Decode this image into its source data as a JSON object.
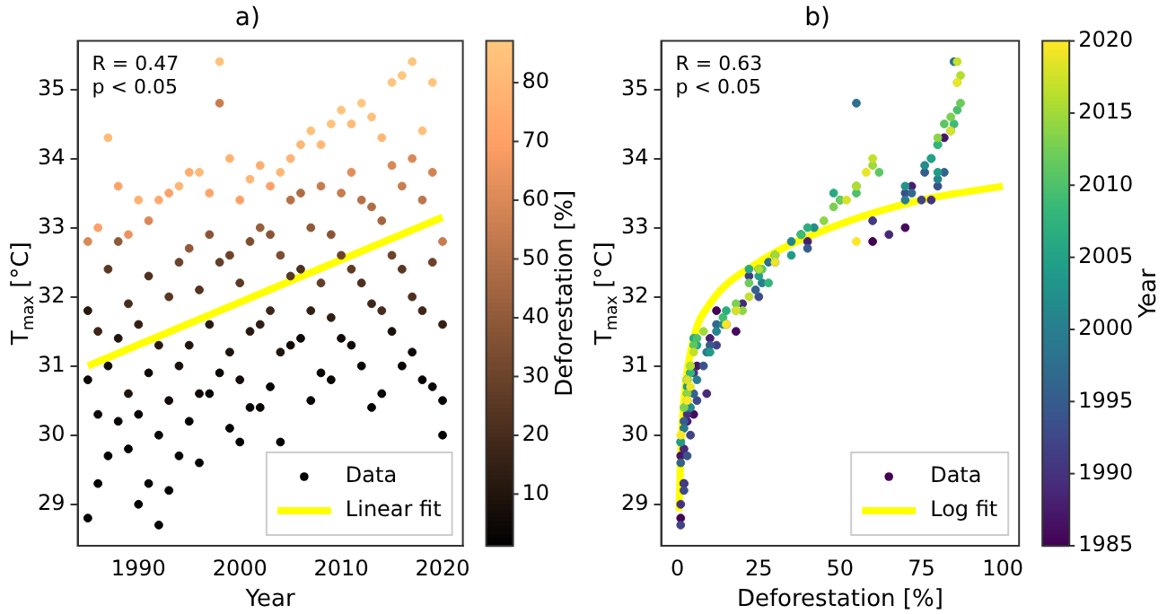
{
  "chart_data": [
    {
      "type": "scatter",
      "title": "a)",
      "xlabel": "Year",
      "ylabel": "T$_{max}$ [°C]",
      "clabel": "Deforestation [%]",
      "xlim": [
        1984,
        2022
      ],
      "xticks": [
        1990,
        2000,
        2010,
        2020
      ],
      "ylim": [
        28.4,
        35.7
      ],
      "yticks": [
        29,
        30,
        31,
        32,
        33,
        34,
        35
      ],
      "clim": [
        1.2,
        87.1
      ],
      "cticks": [
        10,
        20,
        30,
        40,
        50,
        60,
        70,
        80
      ],
      "grid": false,
      "legend": "bottom right",
      "annotations": [
        "R = 0.47",
        "p < 0.05"
      ],
      "series": [
        {
          "name": "Data",
          "type": "scatter",
          "marker": "circle",
          "x": [
            1985,
            1985,
            1985,
            1985,
            1986,
            1986,
            1986,
            1986,
            1987,
            1987,
            1987,
            1987,
            1988,
            1988,
            1988,
            1988,
            1989,
            1989,
            1989,
            1989,
            1990,
            1990,
            1990,
            1990,
            1991,
            1991,
            1991,
            1991,
            1992,
            1992,
            1992,
            1992,
            1993,
            1993,
            1993,
            1993,
            1994,
            1994,
            1994,
            1994,
            1995,
            1995,
            1995,
            1995,
            1996,
            1996,
            1996,
            1996,
            1997,
            1997,
            1997,
            1997,
            1998,
            1998,
            1998,
            1998,
            1999,
            1999,
            1999,
            1999,
            2000,
            2000,
            2000,
            2000,
            2001,
            2001,
            2001,
            2001,
            2002,
            2002,
            2002,
            2002,
            2003,
            2003,
            2003,
            2003,
            2004,
            2004,
            2004,
            2004,
            2005,
            2005,
            2005,
            2005,
            2006,
            2006,
            2006,
            2006,
            2007,
            2007,
            2007,
            2007,
            2008,
            2008,
            2008,
            2008,
            2009,
            2009,
            2009,
            2009,
            2010,
            2010,
            2010,
            2010,
            2011,
            2011,
            2011,
            2011,
            2012,
            2012,
            2012,
            2012,
            2013,
            2013,
            2013,
            2013,
            2014,
            2014,
            2014,
            2014,
            2015,
            2015,
            2015,
            2015,
            2016,
            2016,
            2016,
            2016,
            2017,
            2017,
            2017,
            2017,
            2018,
            2018,
            2018,
            2018,
            2019,
            2019,
            2019,
            2019,
            2020,
            2020,
            2020,
            2020
          ],
          "values": [
            28.8,
            30.8,
            31.8,
            32.8,
            29.3,
            30.3,
            31.5,
            33.0,
            29.7,
            31.0,
            32.4,
            34.3,
            30.2,
            31.4,
            32.8,
            33.6,
            29.8,
            30.6,
            31.9,
            32.9,
            29.0,
            30.3,
            31.6,
            33.4,
            29.3,
            30.9,
            32.3,
            33.1,
            28.7,
            30.0,
            31.3,
            33.4,
            29.2,
            30.5,
            32.0,
            33.5,
            29.7,
            31.0,
            32.5,
            33.6,
            30.2,
            31.3,
            32.7,
            33.8,
            29.6,
            30.6,
            32.1,
            33.8,
            30.6,
            31.6,
            32.9,
            33.5,
            30.9,
            32.5,
            34.8,
            35.4,
            30.1,
            31.2,
            32.6,
            34.0,
            29.9,
            30.8,
            32.2,
            33.4,
            30.4,
            31.5,
            32.8,
            33.7,
            30.4,
            31.6,
            33.0,
            33.9,
            30.7,
            31.8,
            32.9,
            33.6,
            29.9,
            31.2,
            32.6,
            33.8,
            31.3,
            32.3,
            33.4,
            34.0,
            31.4,
            32.4,
            33.5,
            34.2,
            30.5,
            31.8,
            33.0,
            34.4,
            30.9,
            32.2,
            33.6,
            34.2,
            30.8,
            31.7,
            32.9,
            34.5,
            31.4,
            32.6,
            33.5,
            34.7,
            31.3,
            32.4,
            33.8,
            34.5,
            31.0,
            32.2,
            33.4,
            34.8,
            30.4,
            31.9,
            33.3,
            34.6,
            30.6,
            31.8,
            33.1,
            34.3,
            31.5,
            32.6,
            33.9,
            35.1,
            31.0,
            32.4,
            33.6,
            35.2,
            31.2,
            32.0,
            34.0,
            35.4,
            30.8,
            31.8,
            33.4,
            34.4,
            30.7,
            32.5,
            33.8,
            35.1,
            30.0,
            30.5,
            31.6,
            32.8
          ],
          "colors": [
            "#000000",
            "#070403",
            "#281910",
            "#da8857",
            "#030201",
            "#0e0906",
            "#3e2719",
            "#ffa066",
            "#000000",
            "#120b07",
            "#583723",
            "#ffbb77",
            "#070403",
            "#21140d",
            "#905a39",
            "#ffa469",
            "#030201",
            "#1d120c",
            "#462c1c",
            "#ed945e",
            "#000000",
            "#070403",
            "#332014",
            "#ffb271",
            "#030201",
            "#0e0906",
            "#4d301f",
            "#da8857",
            "#000000",
            "#0a0604",
            "#281910",
            "#ffab6d",
            "#030201",
            "#120b07",
            "#583723",
            "#ffa066",
            "#070403",
            "#19100a",
            "#6b432b",
            "#ffb774",
            "#030201",
            "#21140d",
            "#905a39",
            "#ffad6e",
            "#000000",
            "#0e0906",
            "#553522",
            "#ffbb77",
            "#070403",
            "#281910",
            "#895536",
            "#ffa469",
            "#0a0604",
            "#633e28",
            "#c87d4f",
            "#ffc27c",
            "#030201",
            "#1d120c",
            "#6b432b",
            "#ffb271",
            "#000000",
            "#120b07",
            "#5c3a25",
            "#ffa066",
            "#070403",
            "#281910",
            "#7d4e32",
            "#ffb774",
            "#0a0604",
            "#2f1e13",
            "#975f3c",
            "#ffad6e",
            "#070403",
            "#3e2719",
            "#895536",
            "#ffa066",
            "#000000",
            "#21140d",
            "#7d4e32",
            "#ffb774",
            "#120b07",
            "#583723",
            "#b57148",
            "#ffb271",
            "#0e0906",
            "#4d301f",
            "#ae6d45",
            "#ffb774",
            "#070403",
            "#332014",
            "#905a39",
            "#ffc07a",
            "#0a0604",
            "#633e28",
            "#c87d4f",
            "#ffb774",
            "#070403",
            "#2f1e13",
            "#895536",
            "#ffc27c",
            "#120b07",
            "#6b432b",
            "#c87d4f",
            "#ffc57d",
            "#0e0906",
            "#5c3a25",
            "#e28d5a",
            "#ffbb77",
            "#0a0604",
            "#4d301f",
            "#b57148",
            "#ffc77f",
            "#030201",
            "#3e2719",
            "#ae6d45",
            "#ffc07a",
            "#070403",
            "#462c1c",
            "#a36641",
            "#ffb774",
            "#19100a",
            "#6b432b",
            "#da8857",
            "#ffc57d",
            "#0a0604",
            "#583723",
            "#c87d4f",
            "#ffc77f",
            "#0e0906",
            "#4d301f",
            "#da8857",
            "#ffc57d",
            "#070403",
            "#3e2719",
            "#bc764b",
            "#ffc07a",
            "#0a0604",
            "#6b432b",
            "#d38454",
            "#ffc57d",
            "#000000",
            "#070403",
            "#332014",
            "#c87d4f"
          ],
          "cvalues": [
            1,
            3,
            12,
            60,
            2,
            5,
            18,
            70,
            1,
            6,
            25,
            82,
            3,
            10,
            40,
            72,
            2,
            9,
            20,
            65,
            1,
            3,
            15,
            78,
            2,
            5,
            22,
            60,
            1,
            4,
            12,
            75,
            2,
            6,
            25,
            70,
            3,
            8,
            30,
            80,
            2,
            10,
            40,
            76,
            1,
            5,
            24,
            82,
            3,
            12,
            38,
            72,
            4,
            28,
            55,
            85,
            2,
            9,
            30,
            78,
            1,
            6,
            26,
            70,
            3,
            12,
            35,
            80,
            4,
            14,
            42,
            76,
            3,
            18,
            38,
            70,
            1,
            10,
            35,
            80,
            6,
            25,
            50,
            78,
            5,
            22,
            48,
            80,
            3,
            15,
            40,
            84,
            4,
            28,
            55,
            80,
            3,
            14,
            38,
            85,
            6,
            30,
            55,
            86,
            5,
            26,
            62,
            82,
            4,
            22,
            50,
            87,
            2,
            18,
            48,
            84,
            3,
            20,
            45,
            80,
            8,
            30,
            60,
            86,
            4,
            25,
            55,
            87,
            5,
            22,
            60,
            86,
            3,
            18,
            52,
            84,
            4,
            30,
            58,
            86,
            1,
            3,
            15,
            55
          ]
        },
        {
          "name": "Linear fit",
          "type": "line",
          "color": "#ffff00",
          "x": [
            1985,
            2020
          ],
          "values": [
            31.0,
            33.15
          ]
        }
      ]
    },
    {
      "type": "scatter",
      "title": "b)",
      "xlabel": "Deforestation [%]",
      "ylabel": "T$_{max}$ [°C]",
      "clabel": "Year",
      "xlim": [
        -5,
        105
      ],
      "xticks": [
        0,
        25,
        50,
        75,
        100
      ],
      "ylim": [
        28.4,
        35.7
      ],
      "yticks": [
        29,
        30,
        31,
        32,
        33,
        34,
        35
      ],
      "clim": [
        1985,
        2020
      ],
      "cticks": [
        1985,
        1990,
        1995,
        2000,
        2005,
        2010,
        2015,
        2020
      ],
      "grid": false,
      "legend": "bottom right",
      "annotations": [
        "R = 0.63",
        "p < 0.05"
      ],
      "series": [
        {
          "name": "Data",
          "type": "scatter",
          "marker": "circle",
          "colors": [
            "#440154",
            "#440154",
            "#440154",
            "#440154",
            "#450b5d",
            "#450b5d",
            "#450b5d",
            "#450b5d",
            "#461567",
            "#461567",
            "#461567",
            "#461567",
            "#471f70",
            "#471f70",
            "#471f70",
            "#471f70",
            "#482978",
            "#482978",
            "#482978",
            "#482978",
            "#45327d",
            "#45327d",
            "#45327d",
            "#45327d",
            "#433a81",
            "#433a81",
            "#433a81",
            "#433a81",
            "#404386",
            "#404386",
            "#404386",
            "#404386",
            "#3d4c89",
            "#3d4c89",
            "#3d4c89",
            "#3d4c89",
            "#3a538b",
            "#3a538b",
            "#3a538b",
            "#3a538b",
            "#375b8c",
            "#375b8c",
            "#375b8c",
            "#375b8c",
            "#33638d",
            "#33638d",
            "#33638d",
            "#33638d",
            "#306a8e",
            "#306a8e",
            "#306a8e",
            "#306a8e",
            "#2d718e",
            "#2d718e",
            "#2d718e",
            "#2d718e",
            "#2a788e",
            "#2a788e",
            "#2a788e",
            "#2a788e",
            "#287e8e",
            "#287e8e",
            "#287e8e",
            "#287e8e",
            "#25858d",
            "#25858d",
            "#25858d",
            "#25858d",
            "#238c8c",
            "#238c8c",
            "#238c8c",
            "#238c8c",
            "#22948b",
            "#22948b",
            "#22948b",
            "#22948b",
            "#209b8a",
            "#209b8a",
            "#209b8a",
            "#209b8a",
            "#22a287",
            "#22a287",
            "#22a287",
            "#22a287",
            "#28a883",
            "#28a883",
            "#28a883",
            "#28a883",
            "#2dae7e",
            "#2dae7e",
            "#2dae7e",
            "#2dae7e",
            "#33b57a",
            "#33b57a",
            "#33b57a",
            "#33b57a",
            "#3fbb74",
            "#3fbb74",
            "#3fbb74",
            "#3fbb74",
            "#4dc06b",
            "#4dc06b",
            "#4dc06b",
            "#4dc06b",
            "#5bc663",
            "#5bc663",
            "#5bc663",
            "#5bc663",
            "#6acc5b",
            "#6acc5b",
            "#6acc5b",
            "#6acc5b",
            "#7bd050",
            "#7bd050",
            "#7bd050",
            "#7bd050",
            "#8dd544",
            "#8dd544",
            "#8dd544",
            "#8dd544",
            "#a0d939",
            "#a0d939",
            "#a0d939",
            "#a0d939",
            "#b2de2d",
            "#b2de2d",
            "#b2de2d",
            "#b2de2d",
            "#c5e02a",
            "#c5e02a",
            "#c5e02a",
            "#c5e02a",
            "#d7e229",
            "#d7e229",
            "#d7e229",
            "#d7e229",
            "#eae527",
            "#eae527",
            "#eae527",
            "#eae527",
            "#fde725",
            "#fde725",
            "#fde725",
            "#fde725"
          ],
          "x": [
            1,
            3,
            12,
            60,
            2,
            5,
            18,
            70,
            1,
            6,
            25,
            82,
            3,
            10,
            40,
            72,
            2,
            9,
            20,
            65,
            1,
            3,
            15,
            78,
            2,
            5,
            22,
            60,
            1,
            4,
            12,
            75,
            2,
            6,
            25,
            70,
            3,
            8,
            30,
            80,
            2,
            10,
            40,
            76,
            1,
            5,
            24,
            82,
            3,
            12,
            38,
            72,
            4,
            28,
            55,
            85,
            2,
            9,
            30,
            78,
            1,
            6,
            26,
            70,
            3,
            12,
            35,
            80,
            4,
            14,
            42,
            76,
            3,
            18,
            38,
            70,
            1,
            10,
            35,
            80,
            6,
            25,
            50,
            78,
            5,
            22,
            48,
            80,
            3,
            15,
            40,
            84,
            4,
            28,
            55,
            80,
            3,
            14,
            38,
            85,
            6,
            30,
            55,
            86,
            5,
            26,
            62,
            82,
            4,
            22,
            50,
            87,
            2,
            18,
            48,
            84,
            3,
            20,
            45,
            80,
            8,
            30,
            60,
            86,
            4,
            25,
            55,
            87,
            5,
            22,
            60,
            86,
            3,
            18,
            52,
            84,
            4,
            30,
            58,
            86,
            1,
            3,
            15,
            55
          ],
          "values": [
            28.8,
            30.8,
            31.8,
            32.8,
            29.3,
            30.3,
            31.5,
            33.0,
            29.7,
            31.0,
            32.4,
            34.3,
            30.2,
            31.4,
            32.8,
            33.6,
            29.8,
            30.6,
            31.9,
            32.9,
            29.0,
            30.3,
            31.6,
            33.4,
            29.3,
            30.9,
            32.3,
            33.1,
            28.7,
            30.0,
            31.3,
            33.4,
            29.2,
            30.5,
            32.0,
            33.5,
            29.7,
            31.0,
            32.5,
            33.6,
            30.2,
            31.3,
            32.7,
            33.8,
            29.6,
            30.6,
            32.1,
            33.8,
            30.6,
            31.6,
            32.9,
            33.5,
            30.9,
            32.5,
            34.8,
            35.4,
            30.1,
            31.2,
            32.6,
            34.0,
            29.9,
            30.8,
            32.2,
            33.4,
            30.4,
            31.5,
            32.8,
            33.7,
            30.4,
            31.6,
            33.0,
            33.9,
            30.7,
            31.8,
            32.9,
            33.6,
            29.9,
            31.2,
            32.6,
            33.8,
            31.3,
            32.3,
            33.4,
            34.0,
            31.4,
            32.4,
            33.5,
            34.2,
            30.5,
            31.8,
            33.0,
            34.4,
            30.9,
            32.2,
            33.6,
            34.2,
            30.8,
            31.7,
            32.9,
            34.5,
            31.4,
            32.6,
            33.5,
            34.7,
            31.3,
            32.4,
            33.8,
            34.5,
            31.0,
            32.2,
            33.4,
            34.8,
            30.4,
            31.9,
            33.3,
            34.6,
            30.6,
            31.8,
            33.1,
            34.3,
            31.5,
            32.6,
            33.9,
            35.1,
            31.0,
            32.4,
            33.6,
            35.2,
            31.2,
            32.0,
            34.0,
            35.4,
            30.8,
            31.8,
            33.4,
            34.4,
            30.7,
            32.5,
            33.8,
            35.1,
            30.0,
            30.5,
            31.6,
            32.8
          ],
          "cvalues": [
            1985,
            1985,
            1985,
            1985,
            1986,
            1986,
            1986,
            1986,
            1987,
            1987,
            1987,
            1987,
            1988,
            1988,
            1988,
            1988,
            1989,
            1989,
            1989,
            1989,
            1990,
            1990,
            1990,
            1990,
            1991,
            1991,
            1991,
            1991,
            1992,
            1992,
            1992,
            1992,
            1993,
            1993,
            1993,
            1993,
            1994,
            1994,
            1994,
            1994,
            1995,
            1995,
            1995,
            1995,
            1996,
            1996,
            1996,
            1996,
            1997,
            1997,
            1997,
            1997,
            1998,
            1998,
            1998,
            1998,
            1999,
            1999,
            1999,
            1999,
            2000,
            2000,
            2000,
            2000,
            2001,
            2001,
            2001,
            2001,
            2002,
            2002,
            2002,
            2002,
            2003,
            2003,
            2003,
            2003,
            2004,
            2004,
            2004,
            2004,
            2005,
            2005,
            2005,
            2005,
            2006,
            2006,
            2006,
            2006,
            2007,
            2007,
            2007,
            2007,
            2008,
            2008,
            2008,
            2008,
            2009,
            2009,
            2009,
            2009,
            2010,
            2010,
            2010,
            2010,
            2011,
            2011,
            2011,
            2011,
            2012,
            2012,
            2012,
            2012,
            2013,
            2013,
            2013,
            2013,
            2014,
            2014,
            2014,
            2014,
            2015,
            2015,
            2015,
            2015,
            2016,
            2016,
            2016,
            2016,
            2017,
            2017,
            2017,
            2017,
            2018,
            2018,
            2018,
            2018,
            2019,
            2019,
            2019,
            2019,
            2020,
            2020,
            2020,
            2020
          ]
        },
        {
          "name": "Log fit",
          "type": "line",
          "color": "#ffff00",
          "x": [
            0.5,
            1,
            2,
            5,
            10,
            25,
            50,
            75,
            100
          ],
          "values": [
            28.9,
            29.7,
            30.5,
            31.4,
            31.9,
            32.5,
            33.05,
            33.4,
            33.6
          ]
        }
      ]
    }
  ]
}
